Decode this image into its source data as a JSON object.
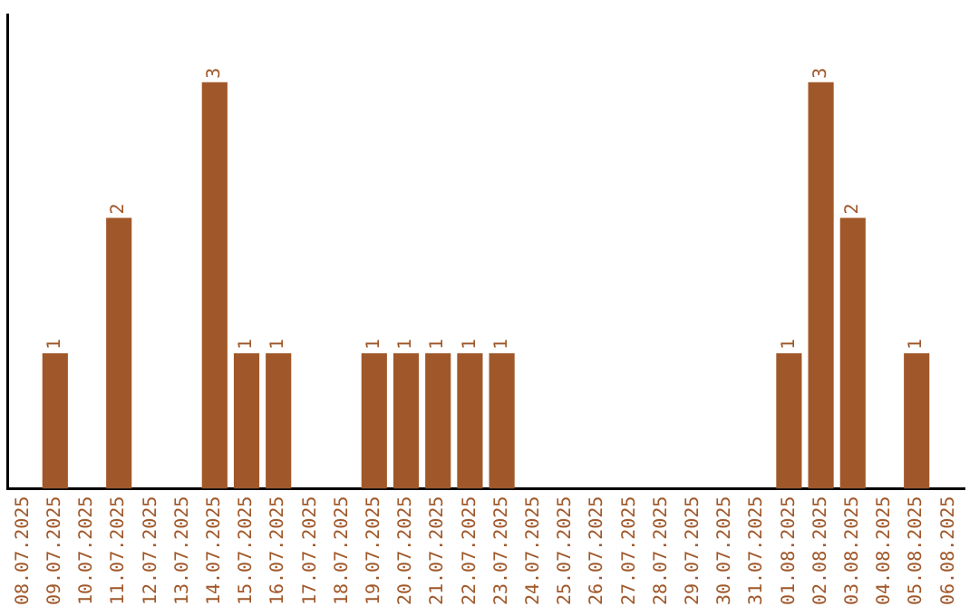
{
  "chart_data": {
    "type": "bar",
    "categories": [
      "08.07.2025",
      "09.07.2025",
      "10.07.2025",
      "11.07.2025",
      "12.07.2025",
      "13.07.2025",
      "14.07.2025",
      "15.07.2025",
      "16.07.2025",
      "17.07.2025",
      "18.07.2025",
      "19.07.2025",
      "20.07.2025",
      "21.07.2025",
      "22.07.2025",
      "23.07.2025",
      "24.07.2025",
      "25.07.2025",
      "26.07.2025",
      "27.07.2025",
      "28.07.2025",
      "29.07.2025",
      "30.07.2025",
      "31.07.2025",
      "01.08.2025",
      "02.08.2025",
      "03.08.2025",
      "04.08.2025",
      "05.08.2025",
      "06.08.2025"
    ],
    "values": [
      0,
      1,
      0,
      2,
      0,
      0,
      3,
      1,
      1,
      0,
      0,
      1,
      1,
      1,
      1,
      1,
      0,
      0,
      0,
      0,
      0,
      0,
      0,
      0,
      1,
      3,
      2,
      0,
      1,
      0
    ],
    "value_labels": [
      null,
      "1",
      null,
      "2",
      null,
      null,
      "3",
      "1",
      "1",
      null,
      null,
      "1",
      "1",
      "1",
      "1",
      "1",
      null,
      null,
      null,
      null,
      null,
      null,
      null,
      null,
      "1",
      "3",
      "2",
      null,
      "1",
      null
    ],
    "color": "#a0582a",
    "tick_labels": "x",
    "grid": false,
    "legend": false
  }
}
